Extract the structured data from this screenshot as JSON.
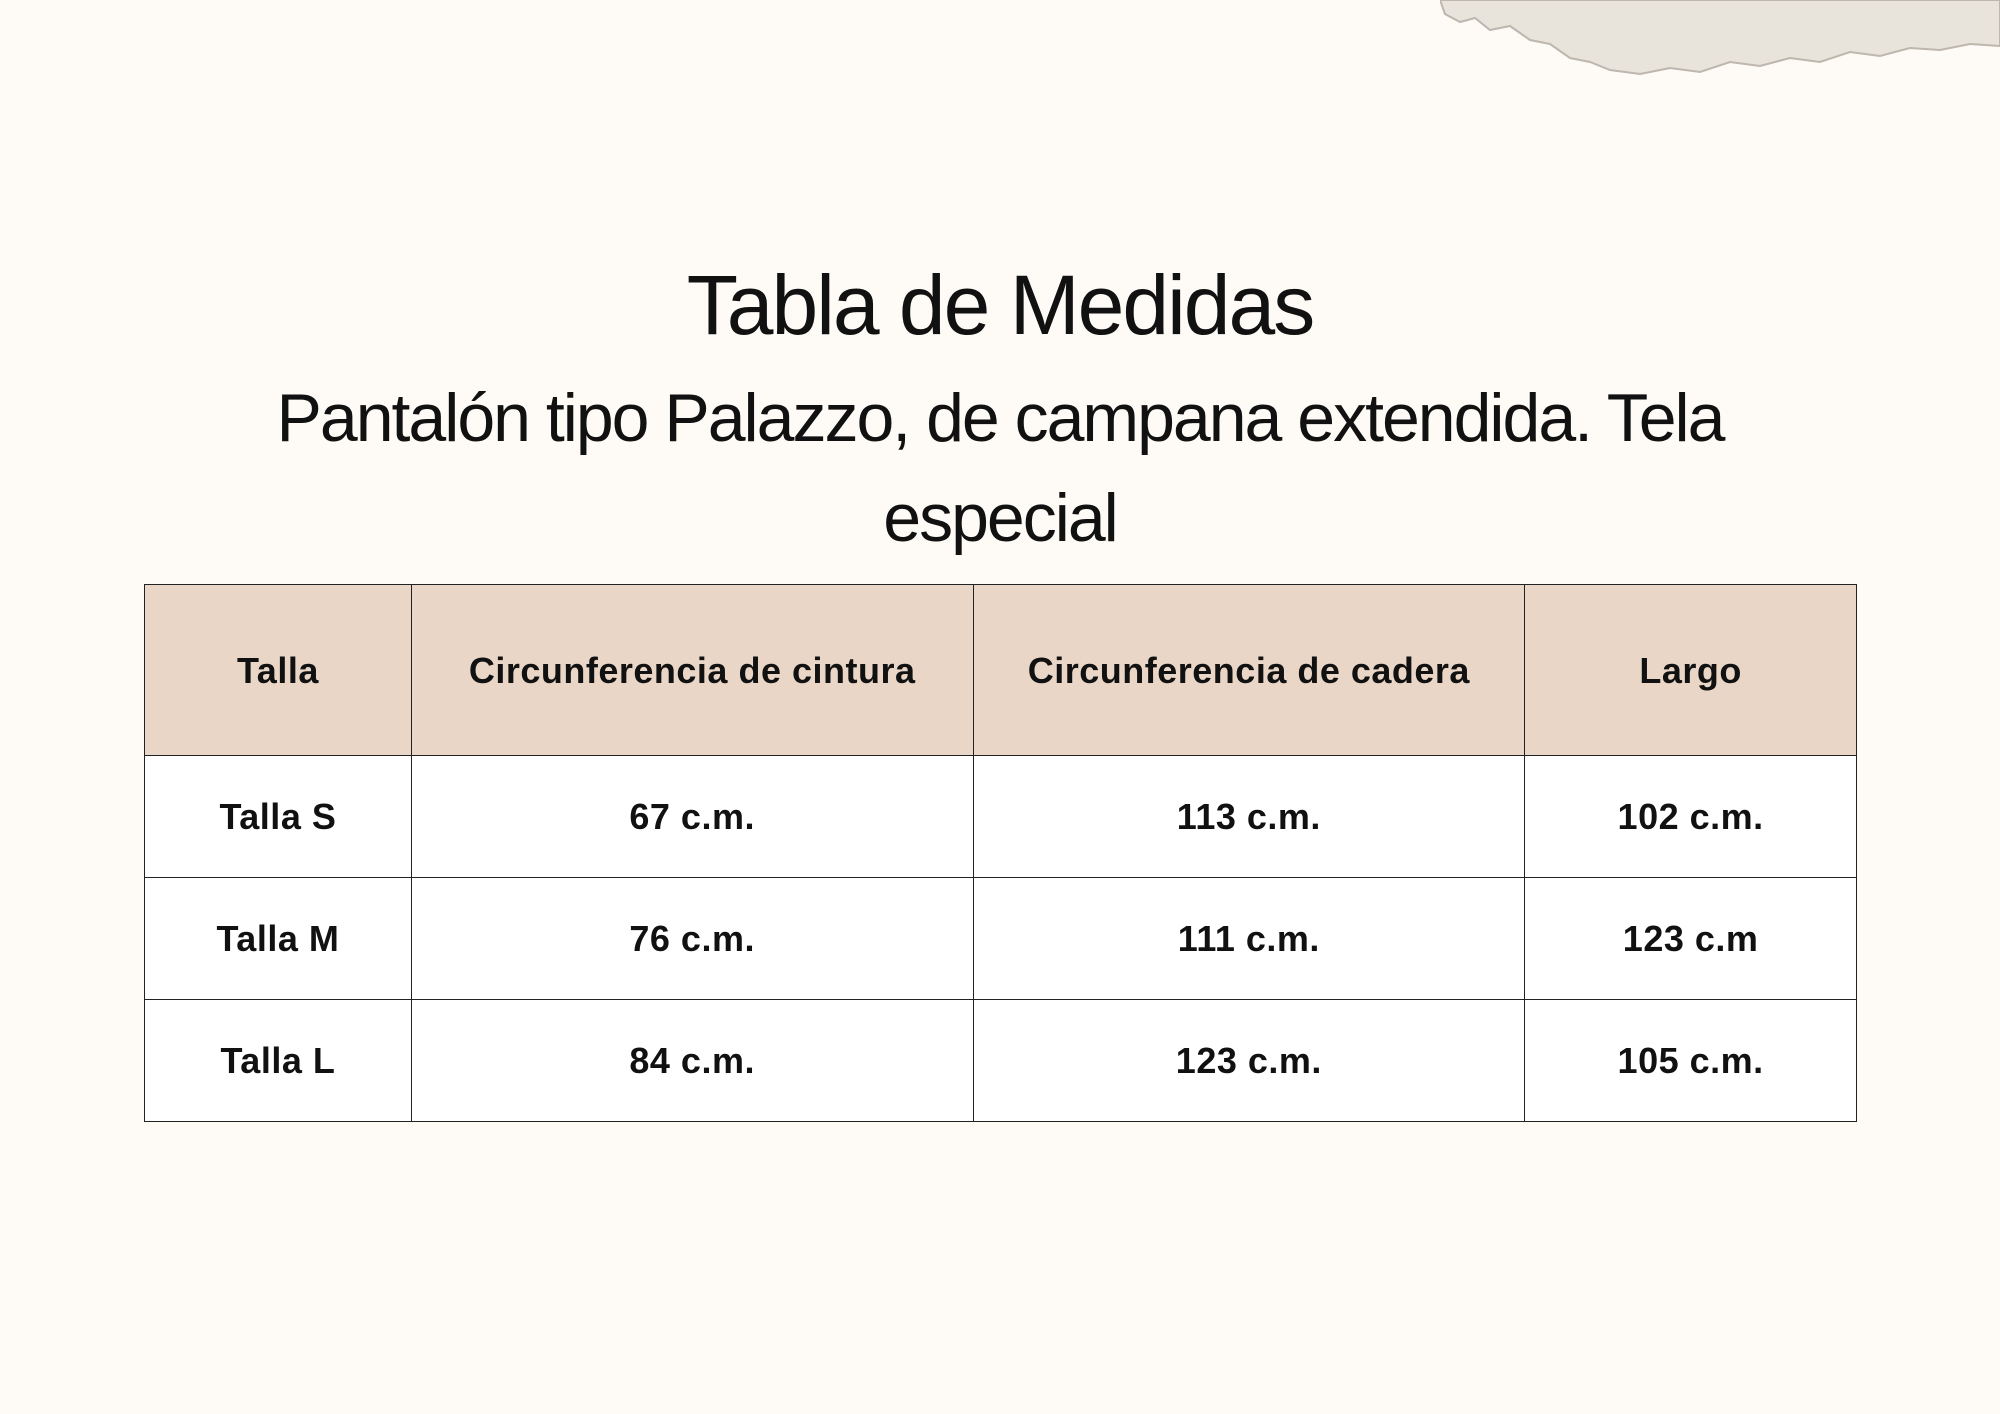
{
  "header": {
    "title": "Tabla de Medidas",
    "subtitle": "Pantalón tipo Palazzo, de campana extendida. Tela especial"
  },
  "table": {
    "columns": [
      "Talla",
      "Circunferencia de cintura",
      "Circunferencia de cadera",
      "Largo"
    ],
    "rows": [
      [
        "Talla S",
        "67 c.m.",
        "113 c.m.",
        "102 c.m."
      ],
      [
        "Talla M",
        "76 c.m.",
        "111 c.m.",
        "123 c.m"
      ],
      [
        "Talla L",
        "84 c.m.",
        "123 c.m.",
        "105 c.m."
      ]
    ]
  }
}
